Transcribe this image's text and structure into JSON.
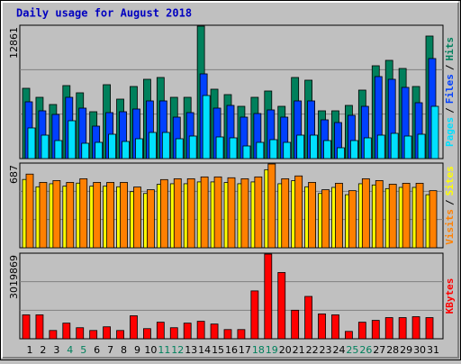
{
  "chart_data": [
    {
      "type": "bar",
      "title": "Daily usage for August 2018",
      "ylim": [
        0,
        12861
      ],
      "legend_separator": "/",
      "series": [
        {
          "name": "Hits",
          "color": "#00805c",
          "values": [
            6825,
            5950,
            5250,
            7088,
            6388,
            4550,
            7175,
            5775,
            7000,
            7700,
            7875,
            5950,
            5950,
            12861,
            6738,
            6213,
            5075,
            5950,
            6563,
            5075,
            7875,
            7613,
            4638,
            4638,
            5163,
            6650,
            9013,
            9538,
            8750,
            7000,
            11900
          ]
        },
        {
          "name": "Files",
          "color": "#0040ff",
          "values": [
            5513,
            4638,
            4288,
            5950,
            4900,
            3150,
            4463,
            4550,
            4813,
            5600,
            5600,
            4025,
            4463,
            8225,
            4900,
            5163,
            4025,
            4375,
            4725,
            4025,
            5600,
            5600,
            3763,
            3500,
            4200,
            5075,
            7963,
            7700,
            6913,
            5425,
            9713
          ]
        },
        {
          "name": "Pages",
          "color": "#00e0ff",
          "values": [
            2975,
            2275,
            1750,
            3675,
            1488,
            1575,
            2363,
            1663,
            1925,
            2538,
            2538,
            1925,
            2188,
            6125,
            2100,
            2013,
            1225,
            1575,
            1838,
            1575,
            2275,
            2275,
            1750,
            1050,
            1750,
            2013,
            2275,
            2450,
            2188,
            2363,
            5075
          ]
        }
      ]
    },
    {
      "type": "bar",
      "ylim": [
        0,
        687
      ],
      "legend_separator": "/",
      "series": [
        {
          "name": "Sites",
          "color": "#ffff00",
          "values": [
            560,
            500,
            525,
            505,
            530,
            505,
            505,
            500,
            460,
            445,
            520,
            525,
            525,
            540,
            540,
            535,
            525,
            540,
            640,
            525,
            550,
            500,
            445,
            495,
            435,
            525,
            515,
            485,
            495,
            495,
            435
          ]
        },
        {
          "name": "Visits",
          "color": "#ff8000",
          "values": [
            604,
            536,
            551,
            536,
            566,
            536,
            536,
            536,
            498,
            476,
            559,
            566,
            566,
            581,
            581,
            574,
            566,
            581,
            687,
            566,
            589,
            536,
            476,
            529,
            468,
            566,
            551,
            521,
            529,
            529,
            468
          ]
        }
      ]
    },
    {
      "type": "bar",
      "ylim": [
        0,
        3019869
      ],
      "categories": [
        "1",
        "2",
        "3",
        "4",
        "5",
        "6",
        "7",
        "8",
        "9",
        "10",
        "11",
        "12",
        "13",
        "14",
        "15",
        "16",
        "17",
        "18",
        "19",
        "20",
        "21",
        "22",
        "23",
        "24",
        "25",
        "26",
        "27",
        "28",
        "29",
        "30",
        "31"
      ],
      "label_colors": [
        "#000000",
        "#000000",
        "#000000",
        "#00805c",
        "#00805c",
        "#000000",
        "#000000",
        "#000000",
        "#000000",
        "#000000",
        "#00805c",
        "#00805c",
        "#000000",
        "#000000",
        "#000000",
        "#000000",
        "#000000",
        "#00805c",
        "#00805c",
        "#000000",
        "#000000",
        "#000000",
        "#000000",
        "#000000",
        "#00805c",
        "#00805c",
        "#000000",
        "#000000",
        "#000000",
        "#000000",
        "#000000"
      ],
      "series": [
        {
          "name": "KBytes",
          "color": "#ff0000",
          "values": [
            853450,
            853450,
            295425,
            558025,
            393900,
            295425,
            426725,
            295425,
            820625,
            361075,
            590850,
            393900,
            558025,
            623675,
            525200,
            328250,
            328250,
            1706900,
            3019869,
            2363400,
            1017575,
            1509950,
            886275,
            853450,
            262600,
            590850,
            656500,
            754975,
            754975,
            787800,
            754975
          ]
        }
      ]
    }
  ]
}
